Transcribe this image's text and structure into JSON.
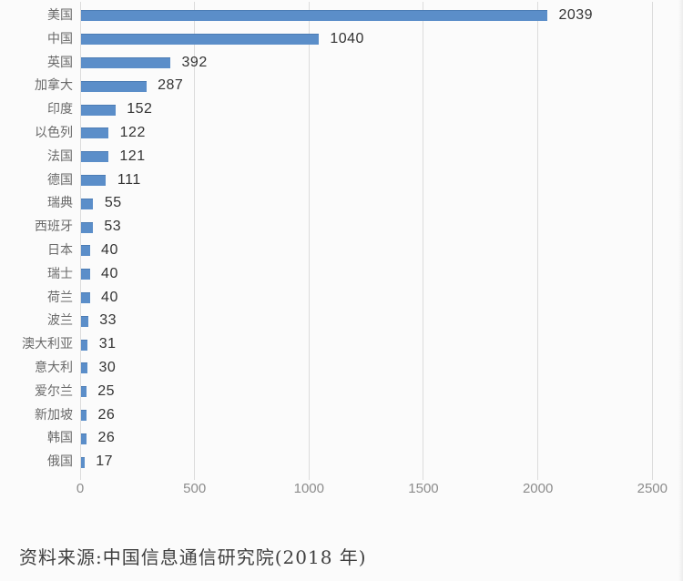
{
  "chart_data": {
    "type": "bar",
    "orientation": "horizontal",
    "title": "",
    "categories": [
      "美国",
      "中国",
      "英国",
      "加拿大",
      "印度",
      "以色列",
      "法国",
      "德国",
      "瑞典",
      "西班牙",
      "日本",
      "瑞士",
      "荷兰",
      "波兰",
      "澳大利亚",
      "意大利",
      "爱尔兰",
      "新加坡",
      "韩国",
      "俄国"
    ],
    "values": [
      2039,
      1040,
      392,
      287,
      152,
      122,
      121,
      111,
      55,
      53,
      40,
      40,
      40,
      33,
      31,
      30,
      25,
      26,
      26,
      17
    ],
    "xlabel": "",
    "ylabel": "",
    "xlim": [
      0,
      2500
    ],
    "x_ticks": [
      0,
      500,
      1000,
      1500,
      2000,
      2500
    ],
    "grid": true,
    "legend": false,
    "data_labels": true,
    "bar_color": "#5b8ec9",
    "grid_color": "#dcdcdc"
  },
  "source_note": "资料来源:中国信息通信研究院(2018 年)"
}
